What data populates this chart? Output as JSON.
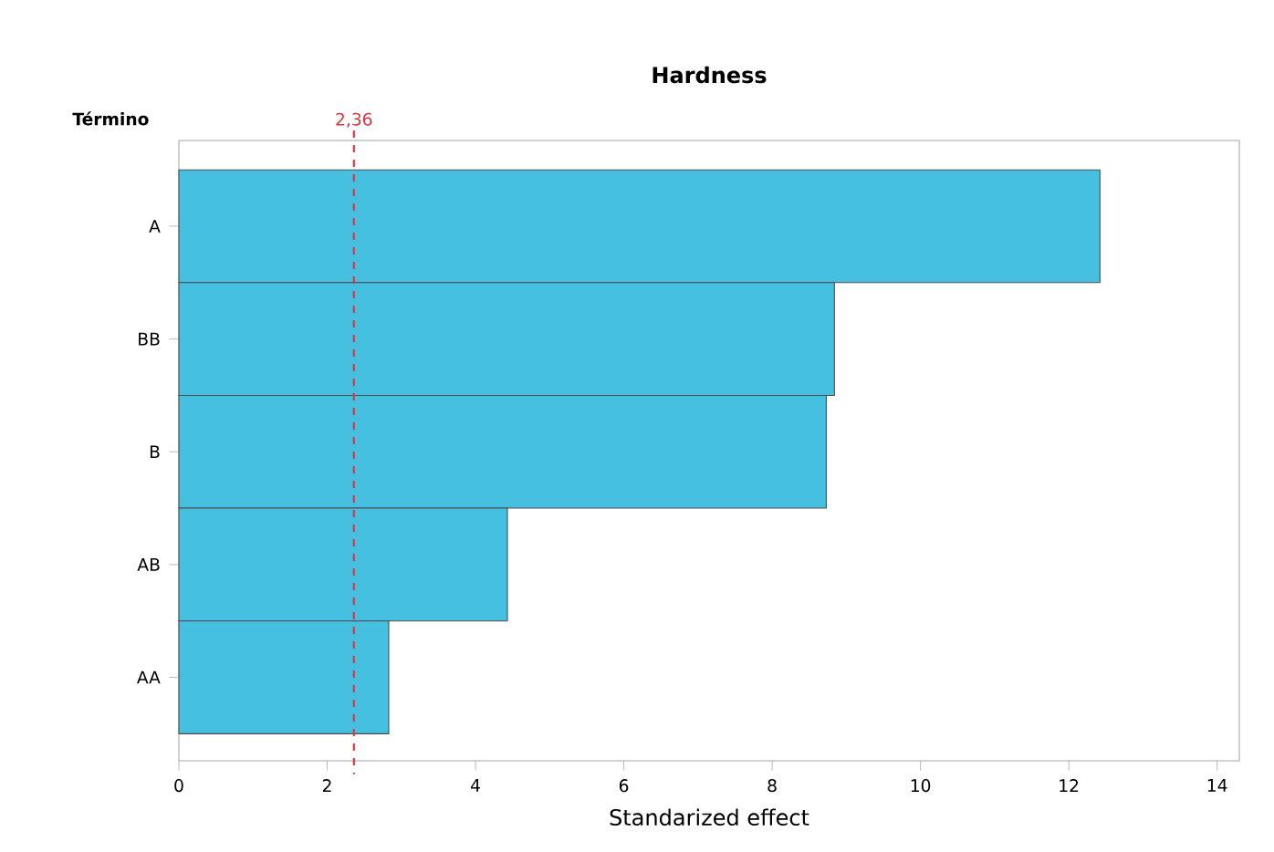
{
  "chart_data": {
    "type": "bar",
    "orientation": "horizontal",
    "title": "Hardness",
    "xlabel": "Standarized effect",
    "ylabel": "Término",
    "categories": [
      "A",
      "BB",
      "B",
      "AB",
      "AA"
    ],
    "values": [
      12.42,
      8.84,
      8.73,
      4.43,
      2.83
    ],
    "color": "#45c0e0",
    "xlim": [
      0,
      14.3
    ],
    "xticks": [
      0,
      2,
      4,
      6,
      8,
      10,
      12,
      14
    ],
    "ref_lines": [
      {
        "axis": "x",
        "value": 2.36,
        "label": "2,36",
        "color": "#d9363e",
        "line_style": "dashed"
      }
    ]
  }
}
